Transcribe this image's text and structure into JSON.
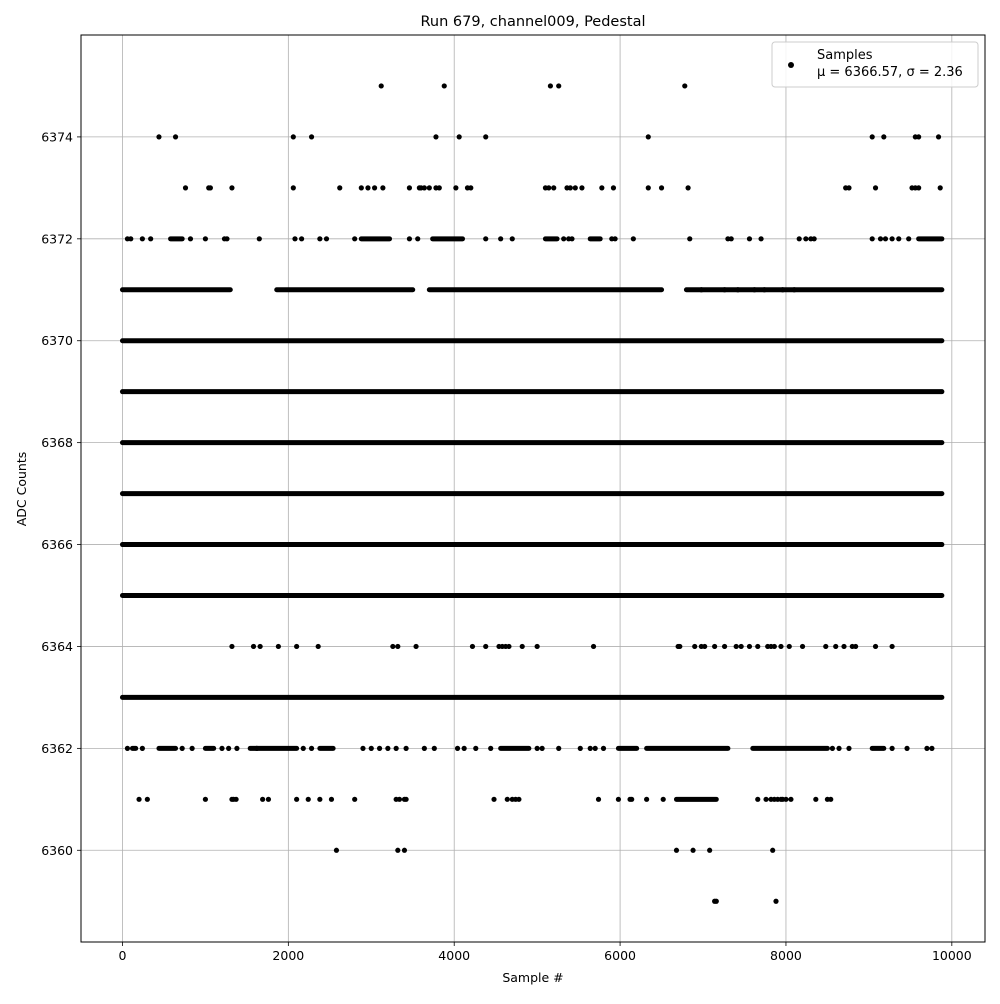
{
  "chart_data": {
    "type": "scatter",
    "title": "Run 679, channel009, Pedestal",
    "xlabel": "Sample #",
    "ylabel": "ADC Counts",
    "xlim": [
      -500,
      10400
    ],
    "ylim": [
      6358.2,
      6376.0
    ],
    "xticks": [
      0,
      2000,
      4000,
      6000,
      8000,
      10000
    ],
    "yticks": [
      6360,
      6362,
      6364,
      6366,
      6368,
      6370,
      6372,
      6374
    ],
    "grid": true,
    "legend_position": "top-right",
    "legend": {
      "label": "Samples",
      "stats": "μ = 6366.57, σ = 2.36"
    },
    "n_samples": 9880,
    "point_color": "#000000",
    "series": [
      {
        "name": "Samples",
        "levels": [
          {
            "y": 6363,
            "ranges": [
              [
                0,
                9880
              ]
            ],
            "points": []
          },
          {
            "y": 6365,
            "ranges": [
              [
                0,
                9880
              ]
            ],
            "points": []
          },
          {
            "y": 6366,
            "ranges": [
              [
                0,
                9880
              ]
            ],
            "points": []
          },
          {
            "y": 6367,
            "ranges": [
              [
                0,
                9880
              ]
            ],
            "points": []
          },
          {
            "y": 6368,
            "ranges": [
              [
                0,
                9880
              ]
            ],
            "points": []
          },
          {
            "y": 6369,
            "ranges": [
              [
                0,
                9880
              ]
            ],
            "points": []
          },
          {
            "y": 6370,
            "ranges": [
              [
                0,
                9880
              ]
            ],
            "points": []
          },
          {
            "y": 6371,
            "ranges": [
              [
                0,
                1300
              ],
              [
                1860,
                3500
              ],
              [
                3700,
                6500
              ],
              [
                6800,
                9880
              ]
            ],
            "points": [
              6980,
              7260,
              7420,
              7620,
              7740,
              7960,
              8100
            ]
          },
          {
            "y": 6362,
            "ranges": [
              [
                120,
                160
              ],
              [
                440,
                640
              ],
              [
                1000,
                1100
              ],
              [
                1540,
                2100
              ],
              [
                2380,
                2540
              ],
              [
                4560,
                4900
              ],
              [
                5980,
                6200
              ],
              [
                6320,
                7300
              ],
              [
                7600,
                8500
              ],
              [
                9040,
                9180
              ]
            ],
            "points": [
              60,
              240,
              720,
              840,
              1200,
              1280,
              1380,
              1620,
              2180,
              2280,
              2900,
              3000,
              3100,
              3200,
              3300,
              3420,
              3640,
              3760,
              4040,
              4120,
              4260,
              4440,
              5000,
              5060,
              5260,
              5520,
              5640,
              5700,
              5800,
              8560,
              8640,
              8760,
              9280,
              9460,
              9700,
              9760
            ]
          },
          {
            "y": 6372,
            "ranges": [
              [
                580,
                720
              ],
              [
                2880,
                3220
              ],
              [
                3740,
                4100
              ],
              [
                5100,
                5240
              ],
              [
                5640,
                5760
              ],
              [
                9600,
                9880
              ]
            ],
            "points": [
              60,
              100,
              240,
              340,
              820,
              1000,
              1230,
              1260,
              1650,
              2080,
              2160,
              2380,
              2460,
              2800,
              3460,
              3560,
              4380,
              4560,
              4700,
              5320,
              5380,
              5420,
              5900,
              5940,
              6160,
              6840,
              7300,
              7340,
              7560,
              7700,
              8160,
              8240,
              8300,
              8340,
              9040,
              9140,
              9200,
              9280,
              9360,
              9480
            ]
          },
          {
            "y": 6361,
            "ranges": [
              [
                6680,
                7160
              ]
            ],
            "points": [
              200,
              300,
              1000,
              1320,
              1340,
              1370,
              1690,
              1760,
              2100,
              2240,
              2380,
              2520,
              2800,
              3300,
              3340,
              3400,
              3420,
              4480,
              4640,
              4700,
              4740,
              4780,
              5740,
              5980,
              6120,
              6140,
              6320,
              6520,
              7660,
              7760,
              7820,
              7860,
              7900,
              7940,
              7960,
              8000,
              8060,
              8360,
              8500,
              8540
            ]
          },
          {
            "y": 6364,
            "ranges": [],
            "points": [
              1320,
              1580,
              1660,
              1880,
              2100,
              2360,
              3260,
              3320,
              3540,
              4220,
              4380,
              4540,
              4580,
              4620,
              4660,
              4820,
              5000,
              5680,
              6700,
              6720,
              6900,
              6980,
              7020,
              7140,
              7260,
              7400,
              7460,
              7560,
              7660,
              7780,
              7820,
              7860,
              7940,
              8040,
              8200,
              8480,
              8600,
              8700,
              8800,
              8840,
              9080,
              9280
            ]
          },
          {
            "y": 6373,
            "ranges": [],
            "points": [
              760,
              1040,
              1060,
              1320,
              2060,
              2620,
              2880,
              2960,
              3040,
              3140,
              3460,
              3580,
              3600,
              3640,
              3700,
              3780,
              3820,
              4020,
              4160,
              4200,
              5100,
              5140,
              5200,
              5360,
              5400,
              5460,
              5540,
              5780,
              5920,
              6340,
              6500,
              6820,
              8720,
              8760,
              9080,
              9520,
              9560,
              9600,
              9860
            ]
          },
          {
            "y": 6374,
            "ranges": [],
            "points": [
              440,
              640,
              2060,
              2280,
              3780,
              4060,
              4380,
              6340,
              9040,
              9180,
              9560,
              9600,
              9840
            ]
          },
          {
            "y": 6375,
            "ranges": [],
            "points": [
              3120,
              3880,
              5160,
              5260,
              6780
            ]
          },
          {
            "y": 6360,
            "ranges": [],
            "points": [
              2580,
              3320,
              3400,
              6680,
              6880,
              7080,
              7840
            ]
          },
          {
            "y": 6359,
            "ranges": [],
            "points": [
              7140,
              7160,
              7880
            ]
          }
        ]
      }
    ]
  }
}
